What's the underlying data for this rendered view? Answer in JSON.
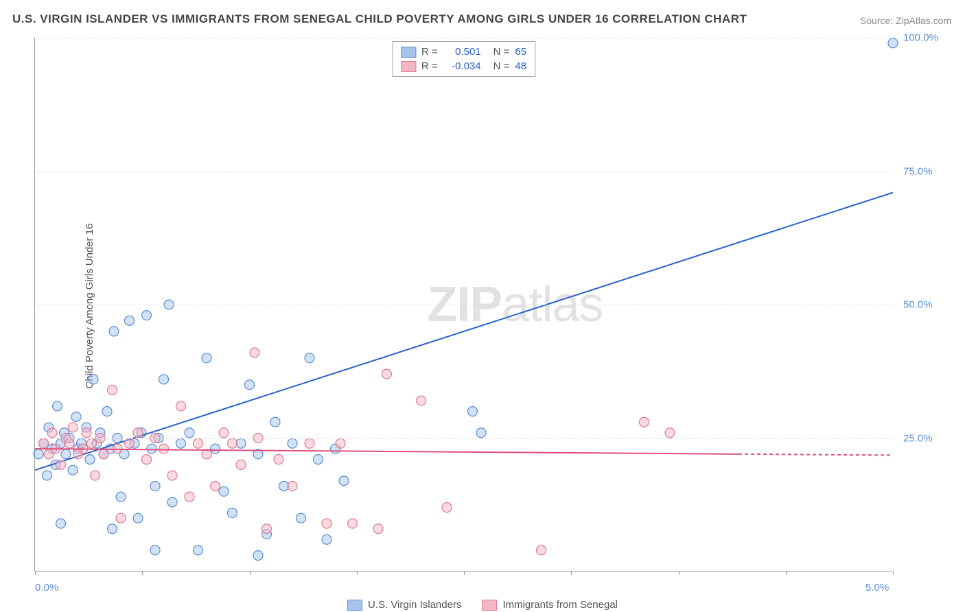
{
  "title": "U.S. VIRGIN ISLANDER VS IMMIGRANTS FROM SENEGAL CHILD POVERTY AMONG GIRLS UNDER 16 CORRELATION CHART",
  "source": "Source: ZipAtlas.com",
  "y_axis_label": "Child Poverty Among Girls Under 16",
  "watermark": {
    "bold": "ZIP",
    "light": "atlas"
  },
  "chart": {
    "type": "scatter",
    "xlim": [
      0,
      5
    ],
    "ylim": [
      0,
      100
    ],
    "x_ticks": [
      0,
      0.625,
      1.25,
      1.875,
      2.5,
      3.125,
      3.75,
      4.375,
      5
    ],
    "x_tick_labels": {
      "0": "0.0%",
      "5": "5.0%"
    },
    "y_gridlines": [
      25,
      50,
      75,
      100
    ],
    "y_tick_labels": {
      "25": "25.0%",
      "50": "50.0%",
      "75": "75.0%",
      "100": "100.0%"
    },
    "background_color": "#ffffff",
    "grid_color": "#dddddd",
    "axis_color": "#999999",
    "tick_label_color": "#5b8dd6",
    "series": [
      {
        "name": "U.S. Virgin Islanders",
        "color_fill": "#a7c4ea",
        "color_stroke": "#5b8dd6",
        "line_color": "#2962c9",
        "marker_radius": 7,
        "fill_opacity": 0.5,
        "R": "0.501",
        "N": "65",
        "regression": {
          "x1": 0,
          "y1": 19,
          "x2": 5,
          "y2": 71,
          "dash_after_x": 5
        },
        "points": [
          [
            0.02,
            22
          ],
          [
            0.05,
            24
          ],
          [
            0.07,
            18
          ],
          [
            0.08,
            27
          ],
          [
            0.1,
            23
          ],
          [
            0.12,
            20
          ],
          [
            0.13,
            31
          ],
          [
            0.15,
            24
          ],
          [
            0.17,
            26
          ],
          [
            0.18,
            22
          ],
          [
            0.2,
            25
          ],
          [
            0.22,
            19
          ],
          [
            0.24,
            29
          ],
          [
            0.25,
            23
          ],
          [
            0.27,
            24
          ],
          [
            0.3,
            27
          ],
          [
            0.32,
            21
          ],
          [
            0.34,
            36
          ],
          [
            0.36,
            24
          ],
          [
            0.38,
            26
          ],
          [
            0.4,
            22
          ],
          [
            0.42,
            30
          ],
          [
            0.44,
            23
          ],
          [
            0.46,
            45
          ],
          [
            0.48,
            25
          ],
          [
            0.5,
            14
          ],
          [
            0.52,
            22
          ],
          [
            0.55,
            47
          ],
          [
            0.58,
            24
          ],
          [
            0.6,
            10
          ],
          [
            0.62,
            26
          ],
          [
            0.65,
            48
          ],
          [
            0.68,
            23
          ],
          [
            0.7,
            16
          ],
          [
            0.72,
            25
          ],
          [
            0.75,
            36
          ],
          [
            0.78,
            50
          ],
          [
            0.8,
            13
          ],
          [
            0.85,
            24
          ],
          [
            0.9,
            26
          ],
          [
            0.95,
            4
          ],
          [
            1.0,
            40
          ],
          [
            1.05,
            23
          ],
          [
            1.1,
            15
          ],
          [
            1.15,
            11
          ],
          [
            1.2,
            24
          ],
          [
            1.25,
            35
          ],
          [
            1.3,
            22
          ],
          [
            1.35,
            7
          ],
          [
            1.4,
            28
          ],
          [
            1.45,
            16
          ],
          [
            1.5,
            24
          ],
          [
            1.55,
            10
          ],
          [
            1.6,
            40
          ],
          [
            1.65,
            21
          ],
          [
            1.7,
            6
          ],
          [
            1.75,
            23
          ],
          [
            1.8,
            17
          ],
          [
            2.55,
            30
          ],
          [
            2.6,
            26
          ],
          [
            0.7,
            4
          ],
          [
            1.3,
            3
          ],
          [
            5.0,
            99
          ],
          [
            0.15,
            9
          ],
          [
            0.45,
            8
          ]
        ]
      },
      {
        "name": "Immigrants from Senegal",
        "color_fill": "#f4b6c2",
        "color_stroke": "#e27a93",
        "line_color": "#e04f7a",
        "marker_radius": 7,
        "fill_opacity": 0.5,
        "R": "-0.034",
        "N": "48",
        "regression": {
          "x1": 0,
          "y1": 23,
          "x2": 4.1,
          "y2": 22,
          "dash_after_x": 4.1,
          "x3": 5,
          "y3": 21.8
        },
        "points": [
          [
            0.05,
            24
          ],
          [
            0.08,
            22
          ],
          [
            0.1,
            26
          ],
          [
            0.12,
            23
          ],
          [
            0.15,
            20
          ],
          [
            0.18,
            25
          ],
          [
            0.2,
            24
          ],
          [
            0.22,
            27
          ],
          [
            0.25,
            22
          ],
          [
            0.28,
            23
          ],
          [
            0.3,
            26
          ],
          [
            0.33,
            24
          ],
          [
            0.35,
            18
          ],
          [
            0.38,
            25
          ],
          [
            0.4,
            22
          ],
          [
            0.45,
            34
          ],
          [
            0.48,
            23
          ],
          [
            0.5,
            10
          ],
          [
            0.55,
            24
          ],
          [
            0.6,
            26
          ],
          [
            0.65,
            21
          ],
          [
            0.7,
            25
          ],
          [
            0.75,
            23
          ],
          [
            0.8,
            18
          ],
          [
            0.85,
            31
          ],
          [
            0.9,
            14
          ],
          [
            0.95,
            24
          ],
          [
            1.0,
            22
          ],
          [
            1.05,
            16
          ],
          [
            1.1,
            26
          ],
          [
            1.15,
            24
          ],
          [
            1.2,
            20
          ],
          [
            1.28,
            41
          ],
          [
            1.3,
            25
          ],
          [
            1.35,
            8
          ],
          [
            1.42,
            21
          ],
          [
            1.5,
            16
          ],
          [
            1.6,
            24
          ],
          [
            1.7,
            9
          ],
          [
            1.78,
            24
          ],
          [
            1.85,
            9
          ],
          [
            2.0,
            8
          ],
          [
            2.05,
            37
          ],
          [
            2.25,
            32
          ],
          [
            2.4,
            12
          ],
          [
            2.95,
            4
          ],
          [
            3.55,
            28
          ],
          [
            3.7,
            26
          ]
        ]
      }
    ],
    "legend_top": {
      "rows": [
        {
          "swatch_fill": "#a7c4ea",
          "swatch_stroke": "#5b8dd6",
          "r_label": "R =",
          "r_val": "0.501",
          "n_label": "N =",
          "n_val": "65"
        },
        {
          "swatch_fill": "#f4b6c2",
          "swatch_stroke": "#e27a93",
          "r_label": "R =",
          "r_val": "-0.034",
          "n_label": "N =",
          "n_val": "48"
        }
      ]
    },
    "legend_bottom": [
      {
        "swatch_fill": "#a7c4ea",
        "swatch_stroke": "#5b8dd6",
        "label": "U.S. Virgin Islanders"
      },
      {
        "swatch_fill": "#f4b6c2",
        "swatch_stroke": "#e27a93",
        "label": "Immigrants from Senegal"
      }
    ]
  }
}
